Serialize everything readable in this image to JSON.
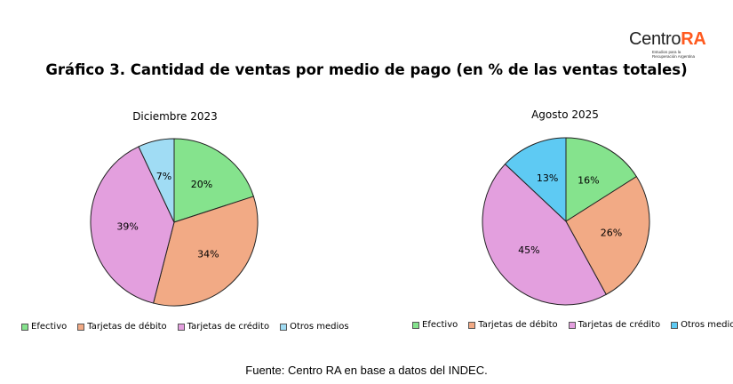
{
  "logo": {
    "name_main": "Centro",
    "name_accent": "RA",
    "tagline_1": "Estudios para la",
    "tagline_2": "Recuperación Argentina",
    "accent_color": "#ff5a1f"
  },
  "title": "Gráfico 3. Cantidad de ventas por medio de pago (en % de las ventas totales)",
  "source": "Fuente: Centro RA en base a datos del INDEC.",
  "legend_labels": [
    "Efectivo",
    "Tarjetas de débito",
    "Tarjetas de crédito",
    "Otros medios"
  ],
  "colors": [
    "#85e38d",
    "#f2aa85",
    "#e39fde",
    "#a0dcf4",
    "#5ecaf3"
  ],
  "chart_data": [
    {
      "type": "pie",
      "title": "Diciembre 2023",
      "categories": [
        "Efectivo",
        "Tarjetas de débito",
        "Tarjetas de crédito",
        "Otros medios"
      ],
      "values": [
        20,
        34,
        39,
        7
      ],
      "labels": [
        "20%",
        "34%",
        "39%",
        "7%"
      ],
      "colors": [
        "#85e38d",
        "#f2aa85",
        "#e39fde",
        "#a0dcf4"
      ],
      "legend": "bottom"
    },
    {
      "type": "pie",
      "title": "Agosto 2025",
      "categories": [
        "Efectivo",
        "Tarjetas de débito",
        "Tarjetas de crédito",
        "Otros medios"
      ],
      "values": [
        16,
        26,
        45,
        13
      ],
      "labels": [
        "16%",
        "26%",
        "45%",
        "13%"
      ],
      "colors": [
        "#85e38d",
        "#f2aa85",
        "#e39fde",
        "#5ecaf3"
      ],
      "legend": "bottom"
    }
  ]
}
